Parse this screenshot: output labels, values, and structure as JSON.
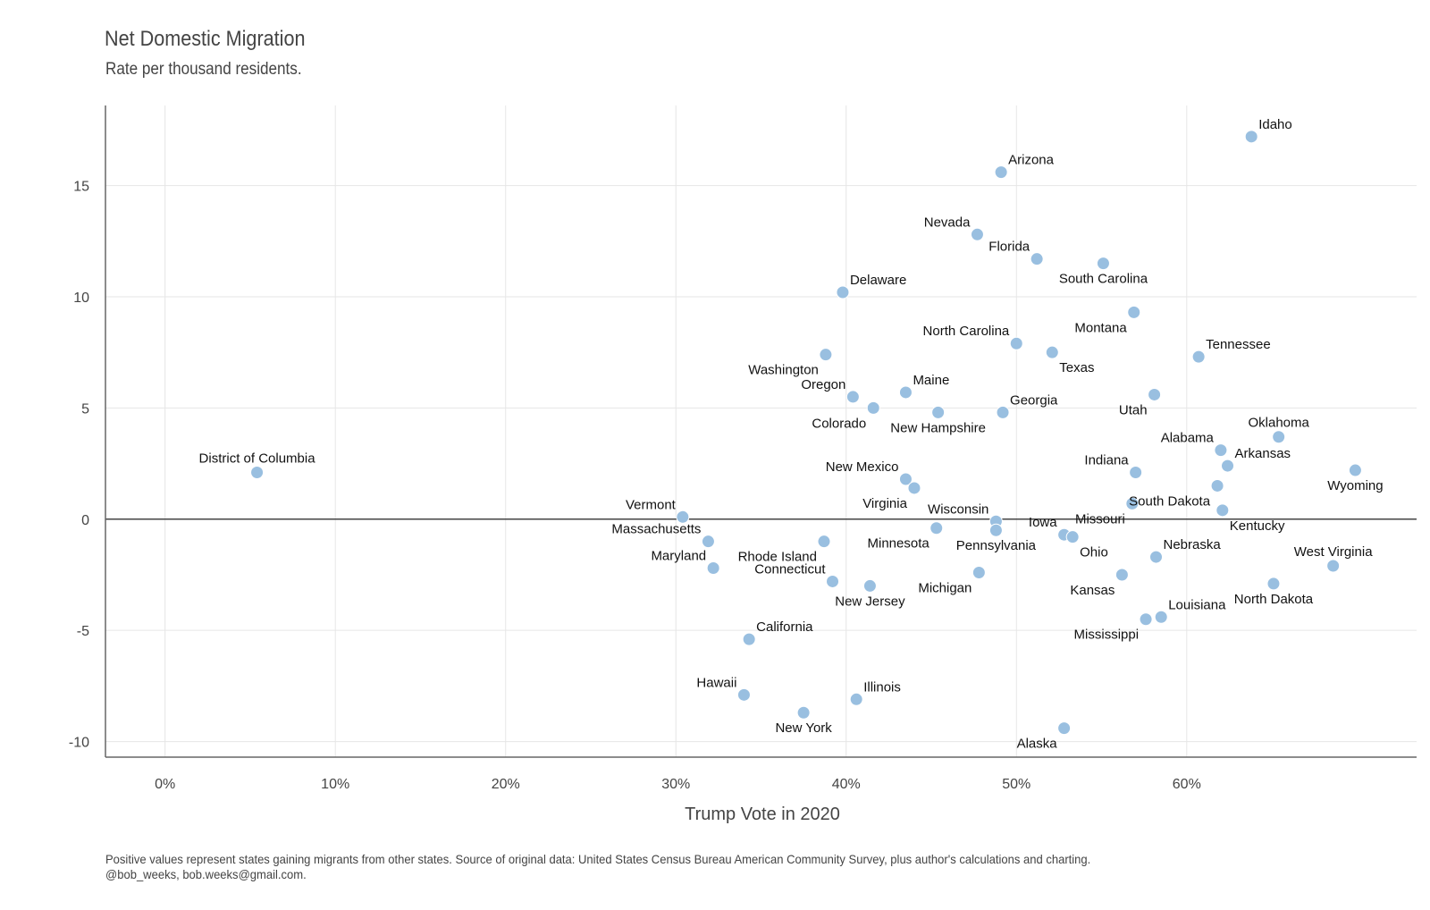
{
  "chart_data": {
    "type": "scatter",
    "title": "Net Domestic Migration",
    "subtitle": "Rate per thousand residents.",
    "xlabel": "Trump Vote in 2020",
    "ylabel": "",
    "caption_line1": "Positive values represent states gaining migrants from other states. Source of original data: United States Census Bureau American Community Survey, plus author's calculations and charting.",
    "caption_line2": "@bob_weeks, bob.weeks@gmail.com.",
    "xlim": [
      -3.5,
      73.5
    ],
    "ylim": [
      -10.7,
      18.6
    ],
    "xticks": [
      0,
      10,
      20,
      30,
      40,
      50,
      60
    ],
    "xtick_labels": [
      "0%",
      "10%",
      "20%",
      "30%",
      "40%",
      "50%",
      "60%"
    ],
    "yticks": [
      15,
      10,
      5,
      0,
      -5,
      -10
    ],
    "ytick_labels": [
      "15",
      "10",
      "5",
      "0",
      "-5",
      "-10"
    ],
    "grid": true,
    "point_color": "#99bfe0",
    "zero_line_color": "#444444",
    "points": [
      {
        "label": "Idaho",
        "x": 63.8,
        "y": 17.2,
        "pos": "tr"
      },
      {
        "label": "Arizona",
        "x": 49.1,
        "y": 15.6,
        "pos": "tr"
      },
      {
        "label": "Nevada",
        "x": 47.7,
        "y": 12.8,
        "pos": "tl"
      },
      {
        "label": "Florida",
        "x": 51.2,
        "y": 11.7,
        "pos": "tl"
      },
      {
        "label": "South Carolina",
        "x": 55.1,
        "y": 11.5,
        "pos": "bc"
      },
      {
        "label": "Delaware",
        "x": 39.8,
        "y": 10.2,
        "pos": "tr"
      },
      {
        "label": "Montana",
        "x": 56.9,
        "y": 9.3,
        "pos": "bl"
      },
      {
        "label": "North Carolina",
        "x": 50.0,
        "y": 7.9,
        "pos": "tl"
      },
      {
        "label": "Texas",
        "x": 52.1,
        "y": 7.5,
        "pos": "br"
      },
      {
        "label": "Washington",
        "x": 38.8,
        "y": 7.4,
        "pos": "bl"
      },
      {
        "label": "Tennessee",
        "x": 60.7,
        "y": 7.3,
        "pos": "tr"
      },
      {
        "label": "Maine",
        "x": 43.5,
        "y": 5.7,
        "pos": "tr"
      },
      {
        "label": "Utah",
        "x": 58.1,
        "y": 5.6,
        "pos": "bl"
      },
      {
        "label": "Oregon",
        "x": 40.4,
        "y": 5.5,
        "pos": "tl"
      },
      {
        "label": "Colorado",
        "x": 41.6,
        "y": 5.0,
        "pos": "bl"
      },
      {
        "label": "New Hampshire",
        "x": 45.4,
        "y": 4.8,
        "pos": "bc"
      },
      {
        "label": "Georgia",
        "x": 49.2,
        "y": 4.8,
        "pos": "tr"
      },
      {
        "label": "Oklahoma",
        "x": 65.4,
        "y": 3.7,
        "pos": "tc"
      },
      {
        "label": "Alabama",
        "x": 62.0,
        "y": 3.1,
        "pos": "tl"
      },
      {
        "label": "Arkansas",
        "x": 62.4,
        "y": 2.4,
        "pos": "tr"
      },
      {
        "label": "Wyoming",
        "x": 69.9,
        "y": 2.2,
        "pos": "bc"
      },
      {
        "label": "District of Columbia",
        "x": 5.4,
        "y": 2.1,
        "pos": "tc"
      },
      {
        "label": "Indiana",
        "x": 57.0,
        "y": 2.1,
        "pos": "tl"
      },
      {
        "label": "New Mexico",
        "x": 43.5,
        "y": 1.8,
        "pos": "tl"
      },
      {
        "label": "South Dakota",
        "x": 61.8,
        "y": 1.5,
        "pos": "bl"
      },
      {
        "label": "Virginia",
        "x": 44.0,
        "y": 1.4,
        "pos": "bl"
      },
      {
        "label": "Missouri",
        "x": 56.8,
        "y": 0.7,
        "pos": "bl"
      },
      {
        "label": "Kentucky",
        "x": 62.1,
        "y": 0.4,
        "pos": "br"
      },
      {
        "label": "Vermont",
        "x": 30.4,
        "y": 0.1,
        "pos": "tl"
      },
      {
        "label": "Wisconsin",
        "x": 48.8,
        "y": -0.1,
        "pos": "tl"
      },
      {
        "label": "Minnesota",
        "x": 45.3,
        "y": -0.4,
        "pos": "bl"
      },
      {
        "label": "Pennsylvania",
        "x": 48.8,
        "y": -0.5,
        "pos": "bc"
      },
      {
        "label": "Iowa",
        "x": 52.8,
        "y": -0.7,
        "pos": "tl"
      },
      {
        "label": "Ohio",
        "x": 53.3,
        "y": -0.8,
        "pos": "br"
      },
      {
        "label": "Massachusetts",
        "x": 31.9,
        "y": -1.0,
        "pos": "tl"
      },
      {
        "label": "Rhode Island",
        "x": 38.7,
        "y": -1.0,
        "pos": "bl"
      },
      {
        "label": "Nebraska",
        "x": 58.2,
        "y": -1.7,
        "pos": "tr"
      },
      {
        "label": "West Virginia",
        "x": 68.6,
        "y": -2.1,
        "pos": "tc"
      },
      {
        "label": "Maryland",
        "x": 32.2,
        "y": -2.2,
        "pos": "tl"
      },
      {
        "label": "Michigan",
        "x": 47.8,
        "y": -2.4,
        "pos": "bl"
      },
      {
        "label": "Kansas",
        "x": 56.2,
        "y": -2.5,
        "pos": "bl"
      },
      {
        "label": "Connecticut",
        "x": 39.2,
        "y": -2.8,
        "pos": "tl"
      },
      {
        "label": "North Dakota",
        "x": 65.1,
        "y": -2.9,
        "pos": "bc"
      },
      {
        "label": "New Jersey",
        "x": 41.4,
        "y": -3.0,
        "pos": "bc"
      },
      {
        "label": "Louisiana",
        "x": 58.5,
        "y": -4.4,
        "pos": "tr"
      },
      {
        "label": "Mississippi",
        "x": 57.6,
        "y": -4.5,
        "pos": "bl"
      },
      {
        "label": "California",
        "x": 34.3,
        "y": -5.4,
        "pos": "tr"
      },
      {
        "label": "Hawaii",
        "x": 34.0,
        "y": -7.9,
        "pos": "tl"
      },
      {
        "label": "Illinois",
        "x": 40.6,
        "y": -8.1,
        "pos": "tr"
      },
      {
        "label": "New York",
        "x": 37.5,
        "y": -8.7,
        "pos": "bc"
      },
      {
        "label": "Alaska",
        "x": 52.8,
        "y": -9.4,
        "pos": "bl"
      }
    ]
  }
}
